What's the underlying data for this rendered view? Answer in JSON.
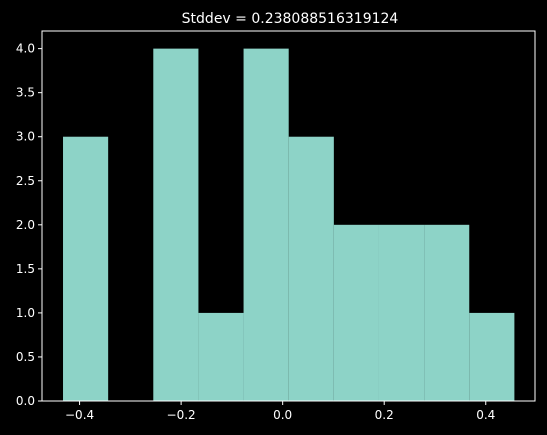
{
  "chart_data": {
    "type": "bar",
    "title": "Stddev = 0.238088516319124",
    "xlabel": "",
    "ylabel": "",
    "bin_edges": [
      -0.4326,
      -0.3437,
      -0.2548,
      -0.1659,
      -0.077,
      0.0119,
      0.1008,
      0.1897,
      0.2786,
      0.3675,
      0.4564
    ],
    "values": [
      3,
      0,
      4,
      1,
      4,
      3,
      2,
      2,
      2,
      1
    ],
    "xlim": [
      -0.474,
      0.497
    ],
    "ylim": [
      0,
      4.2
    ],
    "xticks": [
      -0.4,
      -0.2,
      0.0,
      0.2,
      0.4
    ],
    "xtick_labels": [
      "−0.4",
      "−0.2",
      "0.0",
      "0.2",
      "0.4"
    ],
    "yticks": [
      0.0,
      0.5,
      1.0,
      1.5,
      2.0,
      2.5,
      3.0,
      3.5,
      4.0
    ],
    "ytick_labels": [
      "0.0",
      "0.5",
      "1.0",
      "1.5",
      "2.0",
      "2.5",
      "3.0",
      "3.5",
      "4.0"
    ],
    "grid": false,
    "colors": {
      "bar": "#8dd3c7",
      "background": "#000000",
      "axes": "#ffffff"
    }
  }
}
